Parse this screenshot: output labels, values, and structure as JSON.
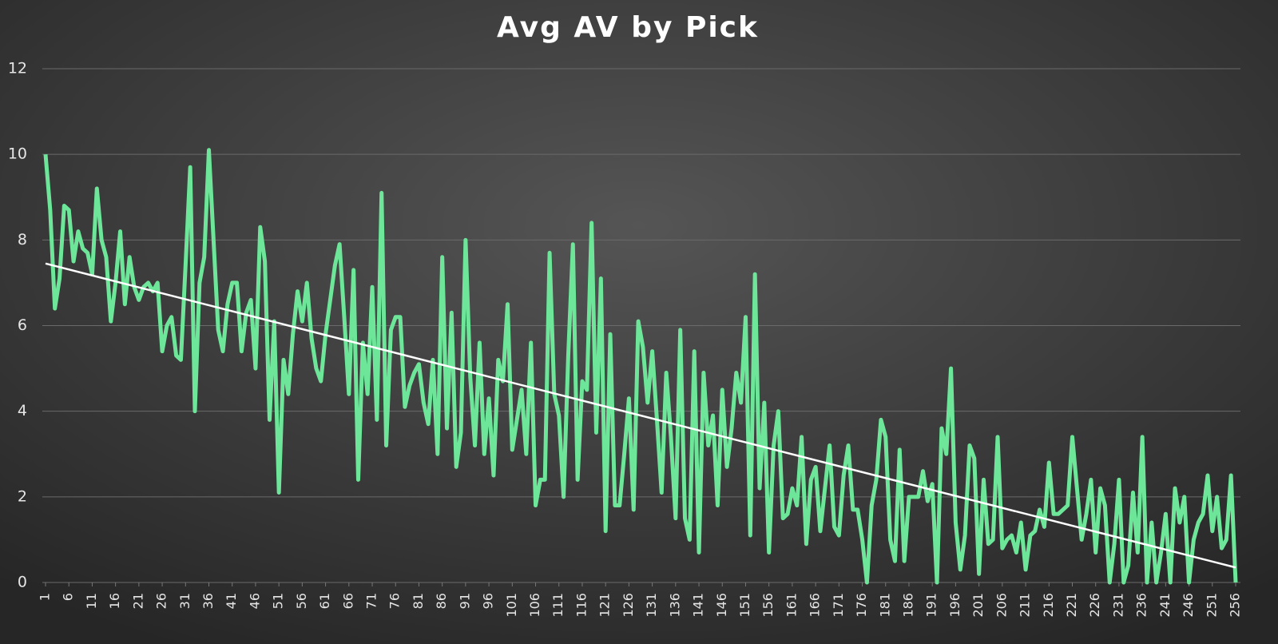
{
  "chart_data": {
    "type": "line",
    "title": "Avg AV by Pick",
    "x": [
      1,
      2,
      3,
      4,
      5,
      6,
      7,
      8,
      9,
      10,
      11,
      12,
      13,
      14,
      15,
      16,
      17,
      18,
      19,
      20,
      21,
      22,
      23,
      24,
      25,
      26,
      27,
      28,
      29,
      30,
      31,
      32,
      33,
      34,
      35,
      36,
      37,
      38,
      39,
      40,
      41,
      42,
      43,
      44,
      45,
      46,
      47,
      48,
      49,
      50,
      51,
      52,
      53,
      54,
      55,
      56,
      57,
      58,
      59,
      60,
      61,
      62,
      63,
      64,
      65,
      66,
      67,
      68,
      69,
      70,
      71,
      72,
      73,
      74,
      75,
      76,
      77,
      78,
      79,
      80,
      81,
      82,
      83,
      84,
      85,
      86,
      87,
      88,
      89,
      90,
      91,
      92,
      93,
      94,
      95,
      96,
      97,
      98,
      99,
      100,
      101,
      102,
      103,
      104,
      105,
      106,
      107,
      108,
      109,
      110,
      111,
      112,
      113,
      114,
      115,
      116,
      117,
      118,
      119,
      120,
      121,
      122,
      123,
      124,
      125,
      126,
      127,
      128,
      129,
      130,
      131,
      132,
      133,
      134,
      135,
      136,
      137,
      138,
      139,
      140,
      141,
      142,
      143,
      144,
      145,
      146,
      147,
      148,
      149,
      150,
      151,
      152,
      153,
      154,
      155,
      156,
      157,
      158,
      159,
      160,
      161,
      162,
      163,
      164,
      165,
      166,
      167,
      168,
      169,
      170,
      171,
      172,
      173,
      174,
      175,
      176,
      177,
      178,
      179,
      180,
      181,
      182,
      183,
      184,
      185,
      186,
      187,
      188,
      189,
      190,
      191,
      192,
      193,
      194,
      195,
      196,
      197,
      198,
      199,
      200,
      201,
      202,
      203,
      204,
      205,
      206,
      207,
      208,
      209,
      210,
      211,
      212,
      213,
      214,
      215,
      216,
      217,
      218,
      219,
      220,
      221,
      222,
      223,
      224,
      225,
      226,
      227,
      228,
      229,
      230,
      231,
      232,
      233,
      234,
      235,
      236,
      237,
      238,
      239,
      240,
      241,
      242,
      243,
      244,
      245,
      246,
      247,
      248,
      249,
      250,
      251,
      252,
      253,
      254,
      255,
      256
    ],
    "values": [
      10.0,
      8.7,
      6.4,
      7.1,
      8.8,
      8.7,
      7.5,
      8.2,
      7.8,
      7.7,
      7.2,
      9.2,
      8.0,
      7.6,
      6.1,
      7.0,
      8.2,
      6.5,
      7.6,
      6.9,
      6.6,
      6.9,
      7.0,
      6.8,
      7.0,
      5.4,
      6.0,
      6.2,
      5.3,
      5.2,
      7.4,
      9.7,
      4.0,
      7.0,
      7.6,
      10.1,
      8.0,
      5.9,
      5.4,
      6.5,
      7.0,
      7.0,
      5.4,
      6.3,
      6.6,
      5.0,
      8.3,
      7.5,
      3.8,
      6.1,
      2.1,
      5.2,
      4.4,
      5.8,
      6.8,
      6.1,
      7.0,
      5.7,
      5.0,
      4.7,
      5.8,
      6.6,
      7.4,
      7.9,
      6.2,
      4.4,
      7.3,
      2.4,
      5.6,
      4.4,
      6.9,
      3.8,
      9.1,
      3.2,
      5.9,
      6.2,
      6.2,
      4.1,
      4.6,
      4.9,
      5.1,
      4.2,
      3.7,
      5.2,
      3.0,
      7.6,
      3.6,
      6.3,
      2.7,
      3.5,
      8.0,
      4.8,
      3.2,
      5.6,
      3.0,
      4.3,
      2.5,
      5.2,
      4.7,
      6.5,
      3.1,
      3.8,
      4.5,
      3.0,
      5.6,
      1.8,
      2.4,
      2.4,
      7.7,
      4.4,
      3.9,
      2.0,
      5.3,
      7.9,
      2.4,
      4.7,
      4.5,
      8.4,
      3.5,
      7.1,
      1.2,
      5.8,
      1.8,
      1.8,
      3.0,
      4.3,
      1.7,
      6.1,
      5.5,
      4.2,
      5.4,
      3.8,
      2.1,
      4.9,
      3.4,
      1.5,
      5.9,
      1.5,
      1.0,
      5.4,
      0.7,
      4.9,
      3.2,
      3.9,
      1.8,
      4.5,
      2.7,
      3.6,
      4.9,
      4.2,
      6.2,
      1.1,
      7.2,
      2.2,
      4.2,
      0.7,
      3.2,
      4.0,
      1.5,
      1.6,
      2.2,
      1.8,
      3.4,
      0.9,
      2.4,
      2.7,
      1.2,
      2.2,
      3.2,
      1.3,
      1.1,
      2.5,
      3.2,
      1.7,
      1.7,
      1.0,
      0.0,
      1.8,
      2.4,
      3.8,
      3.4,
      1.0,
      0.5,
      3.1,
      0.5,
      2.0,
      2.0,
      2.0,
      2.6,
      1.9,
      2.3,
      0.0,
      3.6,
      3.0,
      5.0,
      1.4,
      0.3,
      1.1,
      3.2,
      2.9,
      0.2,
      2.4,
      0.9,
      1.0,
      3.4,
      0.8,
      1.0,
      1.1,
      0.7,
      1.4,
      0.3,
      1.1,
      1.2,
      1.7,
      1.3,
      2.8,
      1.6,
      1.6,
      1.7,
      1.8,
      3.4,
      2.2,
      1.0,
      1.6,
      2.4,
      0.7,
      2.2,
      1.8,
      0.0,
      0.9,
      2.4,
      0.0,
      0.4,
      2.1,
      0.7,
      3.4,
      0.0,
      1.4,
      0.0,
      0.7,
      1.6,
      0.0,
      2.2,
      1.4,
      2.0,
      0.0,
      1.0,
      1.4,
      1.6,
      2.5,
      1.2,
      2.0,
      0.8,
      1.0,
      2.5,
      0.0
    ],
    "color": "#6de69a",
    "trendline": {
      "values": [
        7.45,
        0.35
      ],
      "color": "#ffffff"
    },
    "xlim": [
      1,
      256
    ],
    "xticks": [
      1,
      6,
      11,
      16,
      21,
      26,
      31,
      36,
      41,
      46,
      51,
      56,
      61,
      66,
      71,
      76,
      81,
      86,
      91,
      96,
      101,
      106,
      111,
      116,
      121,
      126,
      131,
      136,
      141,
      146,
      151,
      156,
      161,
      166,
      171,
      176,
      181,
      186,
      191,
      196,
      201,
      206,
      211,
      216,
      221,
      226,
      231,
      236,
      241,
      246,
      251,
      256
    ],
    "ylim": [
      0,
      12
    ],
    "yticks": [
      0,
      2,
      4,
      6,
      8,
      10,
      12
    ],
    "grid": true
  }
}
